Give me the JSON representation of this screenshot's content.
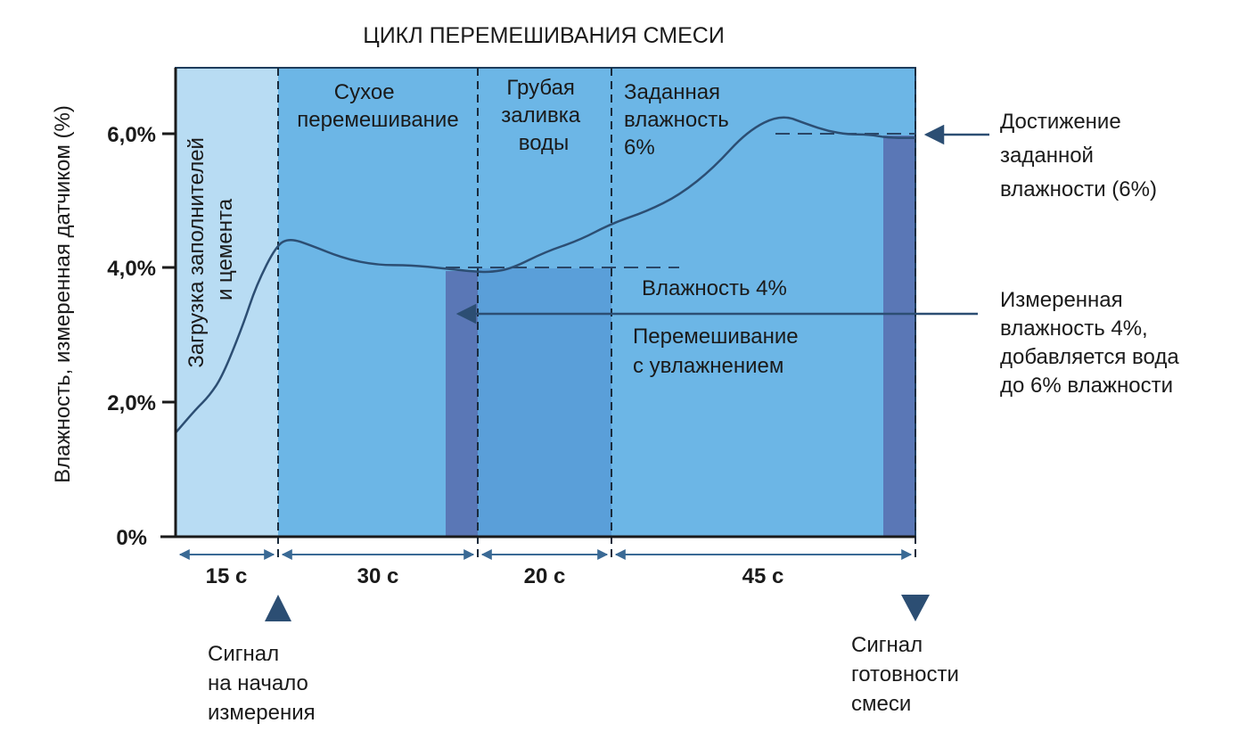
{
  "title": "ЦИКЛ ПЕРЕМЕШИВАНИЯ СМЕСИ",
  "y_axis": {
    "label": "Влажность, измеренная датчиком (%)",
    "ticks": [
      "0%",
      "2,0%",
      "4,0%",
      "6,0%"
    ]
  },
  "phases": [
    {
      "lines": [
        "Загрузка заполнителей",
        "и цемента"
      ]
    },
    {
      "lines": [
        "Сухое",
        "перемешивание"
      ]
    },
    {
      "lines": [
        "Грубая",
        "заливка",
        "воды"
      ]
    },
    {
      "lines": [
        "Заданная",
        "влажность",
        "6%"
      ]
    }
  ],
  "durations": [
    "15 с",
    "30 с",
    "20 с",
    "45 с"
  ],
  "labels": {
    "moisture_4": "Влажность 4%",
    "wet_mixing": [
      "Перемешивание",
      "с увлажнением"
    ]
  },
  "annotations": {
    "target_reached": [
      "Достижение",
      "заданной",
      "влажности (6%)"
    ],
    "measured": [
      "Измеренная",
      "влажность 4%,",
      "добавляется вода",
      "до 6% влажности"
    ]
  },
  "signals": {
    "start": [
      "Сигнал",
      "на начало",
      "измерения"
    ],
    "ready": [
      "Сигнал",
      "готовности",
      "смеси"
    ]
  },
  "chart_data": {
    "type": "line",
    "title": "ЦИКЛ ПЕРЕМЕШИВАНИЯ СМЕСИ",
    "xlabel": "",
    "ylabel": "Влажность, измеренная датчиком (%)",
    "x_unit": "с",
    "xlim": [
      0,
      110
    ],
    "ylim": [
      0,
      7
    ],
    "series": [
      {
        "x": [
          0,
          3,
          5,
          7,
          10,
          12,
          15,
          17,
          20,
          25,
          30,
          35,
          40,
          45,
          47,
          50,
          55,
          60,
          65,
          70,
          75,
          80,
          85,
          90,
          94,
          97,
          100,
          103,
          106,
          109,
          110
        ],
        "y": [
          1.55,
          1.9,
          2.1,
          2.4,
          3.15,
          3.75,
          4.35,
          4.45,
          4.35,
          4.15,
          4.05,
          4.05,
          4.0,
          3.95,
          3.95,
          4.0,
          4.25,
          4.42,
          4.68,
          4.85,
          5.1,
          5.5,
          6.05,
          6.3,
          6.15,
          6.05,
          6.0,
          6.0,
          5.95,
          5.95,
          5.95
        ]
      }
    ],
    "phase_boundaries": [
      15,
      45,
      65,
      110
    ],
    "reference_lines": [
      4,
      6
    ],
    "markers": [
      {
        "x": [
          40,
          45
        ],
        "label": "Измеренная влажность 4%"
      },
      {
        "x": [
          106,
          110
        ],
        "label": "Достижение заданной влажности (6%)"
      }
    ]
  }
}
